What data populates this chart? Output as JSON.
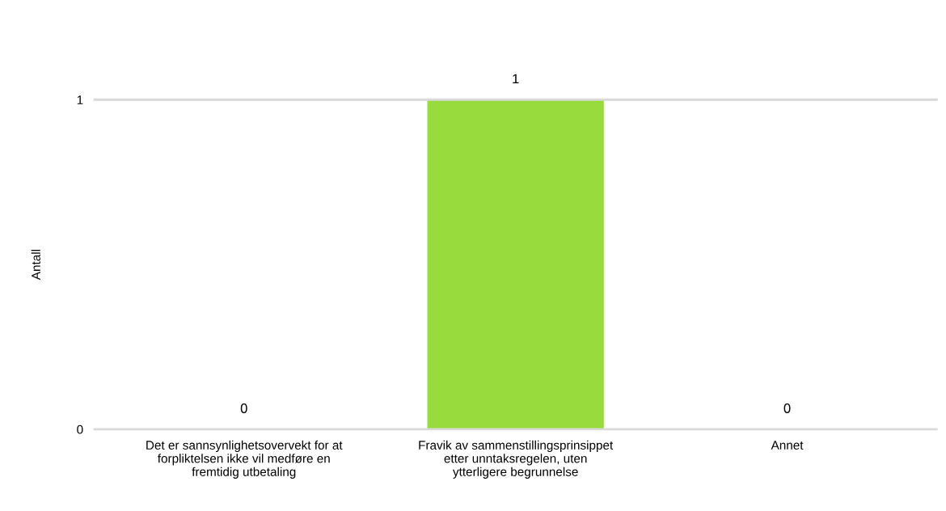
{
  "chart_data": {
    "type": "bar",
    "ylabel": "Antall",
    "categories": [
      "Det er sannsynlighetsovervekt for at forpliktelsen ikke vil medføre en fremtidig utbetaling",
      "Fravik av sammenstillingsprinsippet etter unntaksregelen, uten ytterligere begrunnelse",
      "Annet"
    ],
    "values": [
      0,
      1,
      0
    ],
    "color": "#97dc3c",
    "ylim": [
      0,
      1
    ],
    "yticks": [
      0,
      1
    ],
    "data_labels": true
  }
}
